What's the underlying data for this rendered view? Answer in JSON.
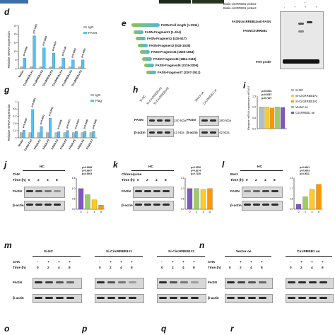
{
  "panels": {
    "d": {
      "letter": "d",
      "legend": [
        "IgG",
        "FASN"
      ],
      "ylabel": "Relative mRNA expression",
      "categories": [
        "Vector",
        "CircRREB1-F1",
        "CircRREB1-F2",
        "CircRREB1-F3",
        "CircRREB1-F4",
        "CircRREB1-F5",
        "CircRREB1-F6"
      ],
      "pvals": [
        "p=0.0056",
        "p=0.0001",
        "p=0.0009",
        "p=0.0007",
        "p=0.0146",
        "p=0.0002",
        "p=0.0001"
      ]
    },
    "e": {
      "letter": "e",
      "fragments": [
        "FASN-Full length (1-2511)",
        "FASN-Fragment1 (1-414)",
        "FASN-Fragment2 (415-817)",
        "FASN-Fragment3 (818-1538)",
        "FASN-Fragment4 (1539-1863)",
        "FASN-Fragment5 (1864-2118)",
        "FASN-Fragment6 (2119-2206)",
        "FASN-Fragment7 (2207-2511)"
      ]
    },
    "f": {
      "rows": [
        "Biotin-circRREB1 probe2",
        "Biotin-circRREB1 probe3"
      ],
      "labels": [
        "FASN/circRREB1/anti-FASN",
        "FASN/circRREB1",
        "Free probe"
      ]
    },
    "g": {
      "letter": "g",
      "legend": [
        "IgG",
        "Flag"
      ],
      "ylabel": "Relative mRNA expression",
      "categories": [
        "Vector",
        "FASN-Full",
        "FASN-F1",
        "FASN-F2",
        "FASN-F3",
        "FASN-F4",
        "FASN-F5",
        "FASN-F6",
        "FASN-F7"
      ],
      "pvals": [
        "p=0.0009",
        "p=0.0001",
        "p=0.0002",
        "p=0.0001",
        "p=0.0008",
        "p=0.0017",
        "p=0.0004",
        "p=0.0006",
        "p=0.0009"
      ]
    },
    "h": {
      "letter": "h",
      "lanes": [
        "Si-NC",
        "Si-CircRREB1#1",
        "Si-CircRREB1#2",
        "Vector oe",
        "CircRREB1 oe"
      ],
      "proteins": [
        "FASN",
        "β-actin"
      ],
      "mw": [
        "240 kDa",
        "42 kDa",
        "180 kDa",
        "42 kDa"
      ]
    },
    "i": {
      "letter": "i",
      "legend": [
        "Si-NC",
        "Si-CircRREB1#1",
        "Si-CircRREB1#2",
        "Vector oe",
        "CircRREB1 oe"
      ],
      "ylabel": "Relative mRNA expression of FASN",
      "pvals": [
        "p=0.6301",
        "p=0.8267",
        "p=0.7107"
      ]
    },
    "j": {
      "letter": "j",
      "cond": "HC",
      "treat": "CHX",
      "time": [
        "0",
        "2",
        "4",
        "8"
      ],
      "timeLabel": "Time (h)",
      "proteins": [
        "FASN",
        "β-actin"
      ],
      "pvals": [
        "p=0.0089",
        "p=0.0007",
        "p=0.0003"
      ]
    },
    "k": {
      "letter": "k",
      "cond": "HC",
      "treat": "Chloroquine",
      "time": [
        "0",
        "2",
        "4",
        "8"
      ],
      "timeLabel": "Time (h)",
      "proteins": [
        "FASN",
        "β-actin"
      ],
      "pvals": [
        "p=0.9750",
        "p=0.8174",
        "p=0.7136"
      ]
    },
    "l": {
      "letter": "l",
      "cond": "HC",
      "treat": "Borz",
      "time": [
        "0",
        "2",
        "4",
        "8"
      ],
      "timeLabel": "Time (h)",
      "proteins": [
        "FASN",
        "β-actin"
      ],
      "pvals": [
        "p=0.0001",
        "p=0.0003",
        "p=0.0011"
      ]
    },
    "m": {
      "letter": "m",
      "groups": [
        "Si-NC",
        "Si-CircRREB1#1",
        "Si-CircRREB1#2"
      ],
      "treat": "CHX",
      "time": [
        "0",
        "2",
        "4",
        "8"
      ],
      "timeLabel": "Time (h)",
      "proteins": [
        "FASN",
        "β-actin"
      ]
    },
    "n": {
      "letter": "n",
      "groups": [
        "Vector oe",
        "CircRREB1 oe"
      ],
      "treat": "CHX",
      "time": [
        "0",
        "2",
        "4",
        "8"
      ],
      "timeLabel": "Time (h)",
      "proteins": [
        "FASN",
        "β-actin"
      ]
    },
    "bottom": {
      "letters": [
        "o",
        "p",
        "q",
        "r"
      ]
    }
  },
  "chart_data": [
    {
      "type": "bar",
      "panel": "d",
      "categories": [
        "Vector",
        "F1",
        "F2",
        "F3",
        "F4",
        "F5",
        "F6"
      ],
      "series": [
        {
          "name": "IgG",
          "values": [
            1,
            1,
            1,
            1,
            1,
            1,
            1
          ]
        },
        {
          "name": "FASN",
          "values": [
            6,
            19,
            12,
            9,
            6,
            5,
            5
          ]
        }
      ],
      "ylim": [
        0,
        25
      ]
    },
    {
      "type": "bar",
      "panel": "g",
      "categories": [
        "Vector",
        "Full",
        "F1",
        "F2",
        "F3",
        "F4",
        "F5",
        "F6",
        "F7"
      ],
      "series": [
        {
          "name": "IgG",
          "values": [
            1,
            1,
            1,
            1,
            1,
            1,
            1,
            1,
            1
          ]
        },
        {
          "name": "Flag",
          "values": [
            1.5,
            5.5,
            2.2,
            3.8,
            1.2,
            1.4,
            1.3,
            1.3,
            1.3
          ]
        }
      ],
      "ylim": [
        0,
        7
      ]
    },
    {
      "type": "bar",
      "panel": "i",
      "categories": [
        "Si-NC",
        "#1",
        "#2",
        "Vector oe",
        "oe"
      ],
      "values": [
        1.0,
        1.0,
        0.95,
        1.0,
        0.98
      ],
      "ylim": [
        0,
        1.5
      ]
    },
    {
      "type": "bar",
      "panel": "j",
      "categories": [
        "0",
        "2",
        "4",
        "8"
      ],
      "values": [
        1.0,
        0.7,
        0.45,
        0.2
      ],
      "ylim": [
        0,
        1.5
      ]
    },
    {
      "type": "bar",
      "panel": "k",
      "categories": [
        "0",
        "2",
        "4",
        "8"
      ],
      "values": [
        1.0,
        1.0,
        0.95,
        1.0
      ],
      "ylim": [
        0,
        1.5
      ]
    },
    {
      "type": "bar",
      "panel": "l",
      "categories": [
        "0",
        "2",
        "4",
        "8"
      ],
      "values": [
        0.4,
        1.0,
        1.6,
        2.0
      ],
      "ylim": [
        0,
        2.5
      ]
    }
  ],
  "colors": {
    "fasn": "#4fc3f7",
    "igg": "#b0bec5",
    "j": [
      "#7e57c2",
      "#9ccc65",
      "#ffca28",
      "#ff9800"
    ]
  }
}
